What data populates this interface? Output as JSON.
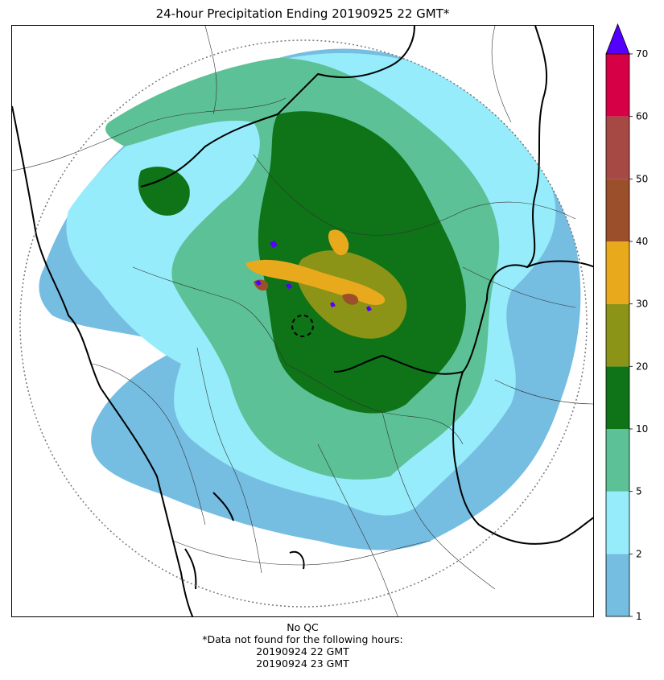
{
  "title": "24-hour Precipitation Ending 20190925 22 GMT*",
  "footnote": {
    "qc": "No QC",
    "missing_header": "*Data not found for the following hours:",
    "missing_hours": [
      "20190924 22 GMT",
      "20190924 23 GMT"
    ]
  },
  "chart_data": {
    "type": "heatmap",
    "description_type": "radar precipitation accumulation map",
    "colorbar": {
      "bounds": [
        1,
        2,
        5,
        10,
        20,
        30,
        40,
        50,
        60,
        70
      ],
      "tick_labels": [
        "1",
        "2",
        "5",
        "10",
        "20",
        "30",
        "40",
        "50",
        "60",
        "70"
      ],
      "colors": [
        "#76bde2",
        "#96ecfa",
        "#5cc196",
        "#0f7317",
        "#8b9417",
        "#e9a91c",
        "#9c4f2b",
        "#a64945",
        "#d50046"
      ],
      "extend_max_color": "#5500ff",
      "units_label": ""
    }
  },
  "colors": {
    "range_ring": "#777777",
    "boundary_thick": "#000000",
    "boundary_thin": "#333333"
  }
}
